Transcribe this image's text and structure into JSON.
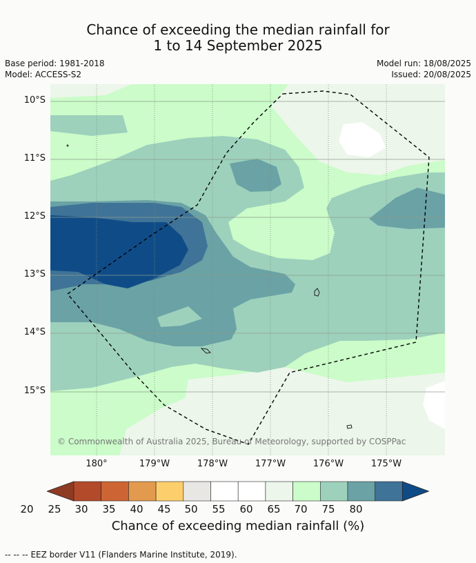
{
  "title_line1": "Chance of exceeding the median rainfall for",
  "title_line2": "1 to 14 September 2025",
  "meta": {
    "base_period": "Base period: 1981-2018",
    "model": "Model: ACCESS-S2",
    "model_run": "Model run: 18/08/2025",
    "issued": "Issued: 20/08/2025"
  },
  "map": {
    "lat_labels": [
      "10°S",
      "11°S",
      "12°S",
      "13°S",
      "14°S",
      "15°S"
    ],
    "lon_labels": [
      "180°",
      "179°W",
      "178°W",
      "177°W",
      "176°W",
      "175°W"
    ],
    "copyright": "© Commonwealth of Australia 2025, Bureau of Meteorology, supported by COSPPac"
  },
  "colorbar": {
    "ticks": [
      "20",
      "25",
      "30",
      "35",
      "40",
      "45",
      "50",
      "55",
      "60",
      "65",
      "70",
      "75",
      "80"
    ],
    "colors": [
      "#8f3a23",
      "#b34a2a",
      "#cc6533",
      "#e29a4e",
      "#fdcf6c",
      "#e9e7e3",
      "#ffffff",
      "#ffffff",
      "#ecf6ea",
      "#cbfcc9",
      "#9dd1bc",
      "#6aa2a5",
      "#3f7397",
      "#0f4c87"
    ],
    "label": "Chance of exceeding median rainfall (%)"
  },
  "legend": {
    "eez_marker": "--  --  --",
    "eez_text": "EEZ border V11 (Flanders Marine Institute, 2019)."
  }
}
